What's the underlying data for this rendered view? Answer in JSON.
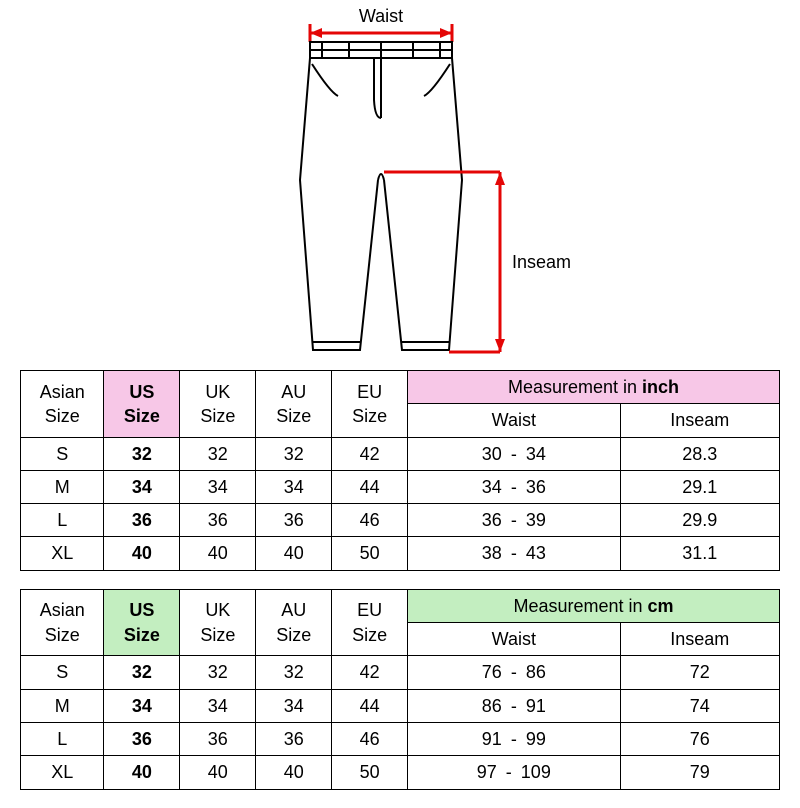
{
  "diagram": {
    "waist_label": "Waist",
    "inseam_label": "Inseam",
    "waist_color": "#e40606",
    "inseam_color": "#e40606",
    "outline_color": "#000000",
    "label_color": "#000000",
    "label_fontsize": 18
  },
  "tables": [
    {
      "id": "inch",
      "highlight_color": "#f7c7e7",
      "measurement_label_prefix": "Measurement in ",
      "measurement_unit": "inch",
      "headers": {
        "asian": "Asian Size",
        "us": "US Size",
        "uk": "UK Size",
        "au": "AU Size",
        "eu": "EU Size",
        "waist": "Waist",
        "inseam": "Inseam"
      },
      "rows": [
        {
          "asian": "S",
          "us": "32",
          "uk": "32",
          "au": "32",
          "eu": "42",
          "waist_lo": "30",
          "waist_hi": "34",
          "inseam": "28.3"
        },
        {
          "asian": "M",
          "us": "34",
          "uk": "34",
          "au": "34",
          "eu": "44",
          "waist_lo": "34",
          "waist_hi": "36",
          "inseam": "29.1"
        },
        {
          "asian": "L",
          "us": "36",
          "uk": "36",
          "au": "36",
          "eu": "46",
          "waist_lo": "36",
          "waist_hi": "39",
          "inseam": "29.9"
        },
        {
          "asian": "XL",
          "us": "40",
          "uk": "40",
          "au": "40",
          "eu": "50",
          "waist_lo": "38",
          "waist_hi": "43",
          "inseam": "31.1"
        }
      ]
    },
    {
      "id": "cm",
      "highlight_color": "#c3eec0",
      "measurement_label_prefix": "Measurement in ",
      "measurement_unit": "cm",
      "headers": {
        "asian": "Asian Size",
        "us": "US Size",
        "uk": "UK Size",
        "au": "AU Size",
        "eu": "EU Size",
        "waist": "Waist",
        "inseam": "Inseam"
      },
      "rows": [
        {
          "asian": "S",
          "us": "32",
          "uk": "32",
          "au": "32",
          "eu": "42",
          "waist_lo": "76",
          "waist_hi": "86",
          "inseam": "72"
        },
        {
          "asian": "M",
          "us": "34",
          "uk": "34",
          "au": "34",
          "eu": "44",
          "waist_lo": "86",
          "waist_hi": "91",
          "inseam": "74"
        },
        {
          "asian": "L",
          "us": "36",
          "uk": "36",
          "au": "36",
          "eu": "46",
          "waist_lo": "91",
          "waist_hi": "99",
          "inseam": "76"
        },
        {
          "asian": "XL",
          "us": "40",
          "uk": "40",
          "au": "40",
          "eu": "50",
          "waist_lo": "97",
          "waist_hi": "109",
          "inseam": "79"
        }
      ]
    }
  ]
}
